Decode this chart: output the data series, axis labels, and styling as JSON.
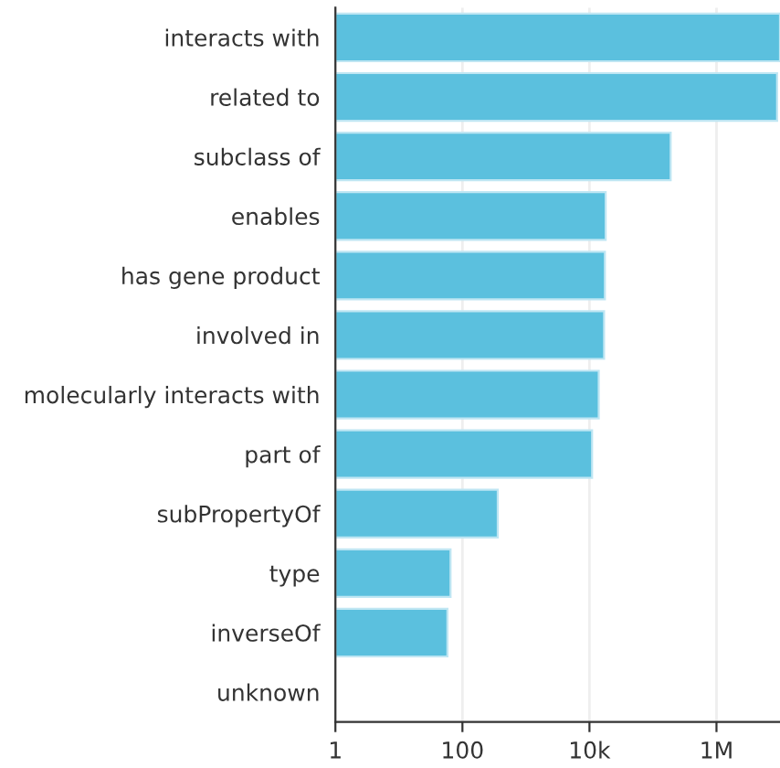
{
  "chart_data": {
    "type": "bar",
    "orientation": "horizontal",
    "log": "x",
    "categories": [
      "interacts with",
      "related to",
      "subclass of",
      "enables",
      "has gene product",
      "involved in",
      "molecularly interacts with",
      "part of",
      "subPropertyOf",
      "type",
      "inverseOf",
      "unknown"
    ],
    "values": [
      10000000,
      9000000,
      190000,
      18000,
      17500,
      17000,
      14000,
      11000,
      360,
      65,
      58,
      null
    ],
    "color": "#5bc0de",
    "xlim": [
      1,
      10000000
    ],
    "xticks": [
      1,
      100,
      {
        "value": 10000,
        "label": "10k"
      },
      {
        "value": 1000000,
        "label": "1M"
      }
    ],
    "grid": "x"
  }
}
